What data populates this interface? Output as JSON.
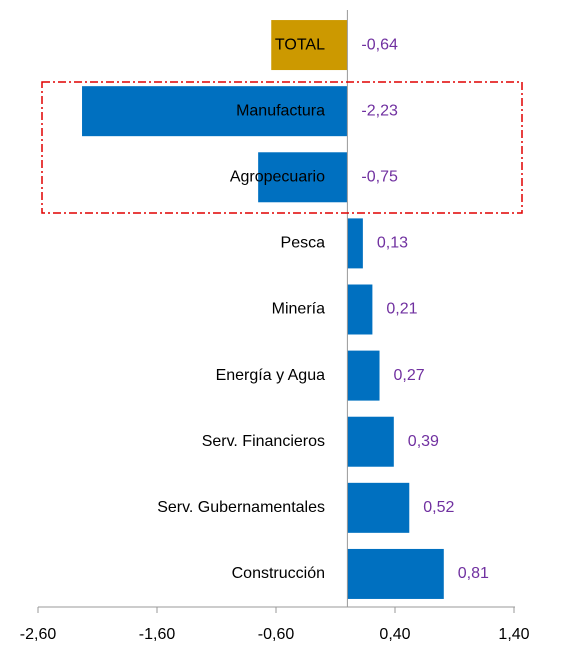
{
  "chart_data": {
    "type": "bar",
    "orientation": "horizontal",
    "categories": [
      "TOTAL",
      "Manufactura",
      "Agropecuario",
      "Pesca",
      "Minería",
      "Energía y Agua",
      "Serv. Financieros",
      "Serv. Gubernamentales",
      "Construcción"
    ],
    "values": [
      -0.64,
      -2.23,
      -0.75,
      0.13,
      0.21,
      0.27,
      0.39,
      0.52,
      0.81
    ],
    "value_labels": [
      "-0,64",
      "-2,23",
      "-0,75",
      "0,13",
      "0,21",
      "0,27",
      "0,39",
      "0,52",
      "0,81"
    ],
    "colors": [
      "#cc9900",
      "#0070c0",
      "#0070c0",
      "#0070c0",
      "#0070c0",
      "#0070c0",
      "#0070c0",
      "#0070c0",
      "#0070c0"
    ],
    "xlim": [
      -2.6,
      1.4
    ],
    "xticks": [
      {
        "value": -2.6,
        "label": "-2,60"
      },
      {
        "value": -1.6,
        "label": "-1,60"
      },
      {
        "value": -0.6,
        "label": "-0,60"
      },
      {
        "value": 0.4,
        "label": "0,40"
      },
      {
        "value": 1.4,
        "label": "1,40"
      }
    ]
  }
}
